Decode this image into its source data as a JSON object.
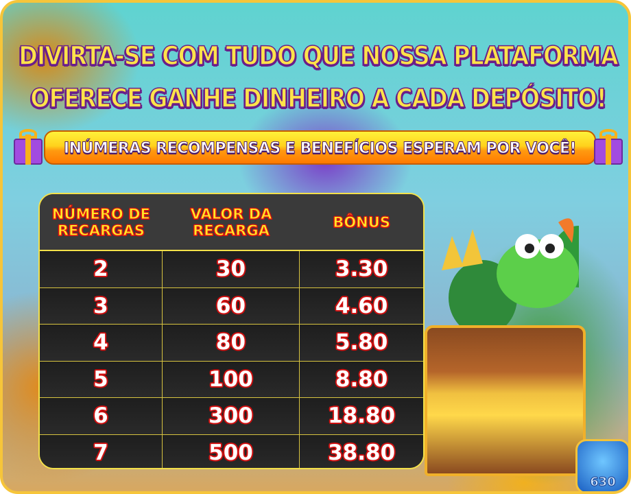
{
  "headline": {
    "line1": "DIVIRTA-SE COM TUDO QUE NOSSA PLATAFORMA",
    "line2": "OFERECE GANHE DINHEIRO A CADA DEPÓSITO!"
  },
  "ribbon": {
    "text": "INÚMERAS RECOMPENSAS E BENEFÍCIOS ESPERAM POR VOCÊ!",
    "icon": "gift-icon"
  },
  "table": {
    "headers": [
      "NÚMERO DE RECARGAS",
      "VALOR DA RECARGA",
      "BÔNUS"
    ],
    "rows": [
      [
        "2",
        "30",
        "3.30"
      ],
      [
        "3",
        "60",
        "4.60"
      ],
      [
        "4",
        "80",
        "5.80"
      ],
      [
        "5",
        "100",
        "8.80"
      ],
      [
        "6",
        "300",
        "18.80"
      ],
      [
        "7",
        "500",
        "38.80"
      ]
    ]
  },
  "logo": {
    "text": "630"
  },
  "colors": {
    "headline": "#ffe34a",
    "header_text": "#ffe727",
    "table_bg": "#252525",
    "border": "#f3e14a",
    "number_outline": "#d01010"
  }
}
